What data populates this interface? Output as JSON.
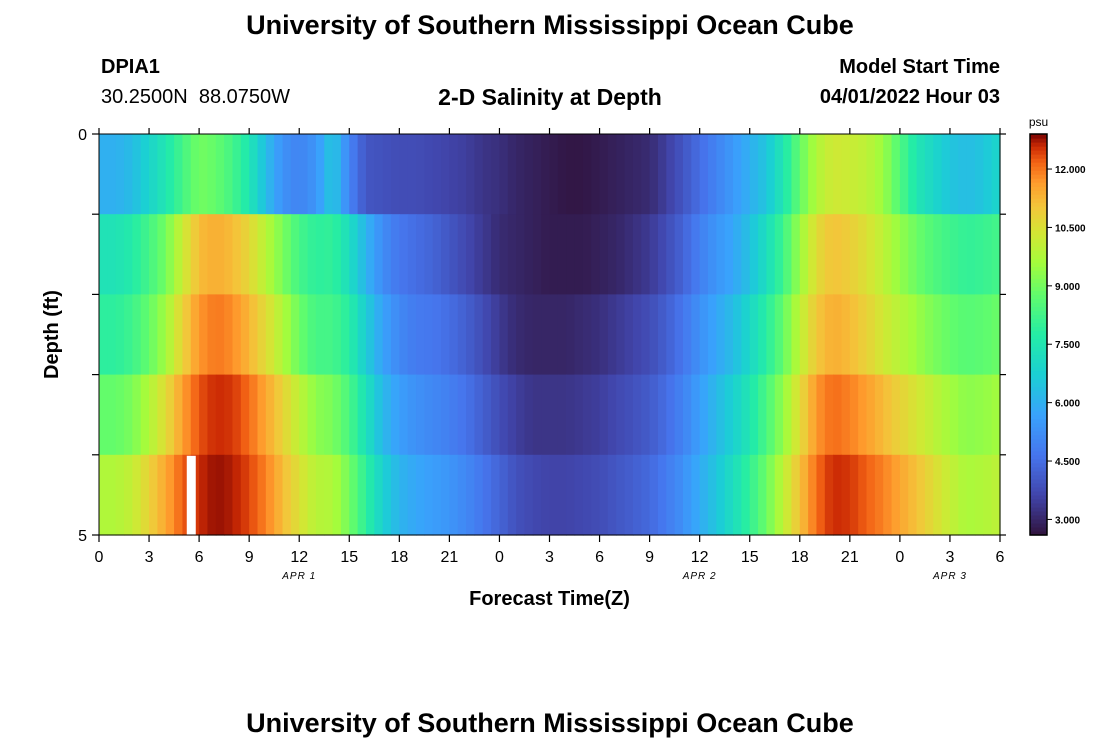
{
  "header": {
    "title_top": "University of Southern Mississippi Ocean Cube",
    "station_id": "DPIA1",
    "station_coords": "30.2500N  88.0750W",
    "subtitle": "2-D Salinity at Depth",
    "model_start_label": "Model Start Time",
    "model_start_value": "04/01/2022 Hour 03",
    "title_bottom": "University of Southern Mississippi Ocean Cube"
  },
  "chart_data": {
    "type": "heatmap",
    "title": "2-D Salinity at Depth",
    "xlabel": "Forecast Time(Z)",
    "ylabel": "Depth (ft)",
    "x_tick_labels": [
      "0",
      "3",
      "6",
      "9",
      "12",
      "15",
      "18",
      "21",
      "0",
      "3",
      "6",
      "9",
      "12",
      "15",
      "18",
      "21",
      "0",
      "3",
      "6"
    ],
    "x_range_hours": [
      0,
      54
    ],
    "date_labels": [
      {
        "text": "APR 1",
        "hour": 12
      },
      {
        "text": "APR 2",
        "hour": 36
      },
      {
        "text": "APR 3",
        "hour": 51
      }
    ],
    "y_tick_labels": [
      "0",
      "5"
    ],
    "y_range": [
      0,
      5
    ],
    "colorbar": {
      "unit": "psu",
      "min": 2.6,
      "max": 12.9,
      "tick_values": [
        3.0,
        4.5,
        6.0,
        7.5,
        9.0,
        10.5,
        12.0
      ],
      "tick_labels": [
        "3.000",
        "4.500",
        "6.000",
        "7.500",
        "9.000",
        "10.500",
        "12.000"
      ]
    },
    "depth_layers": 5,
    "time_nodes_hours": [
      0,
      1,
      2,
      3,
      4,
      5,
      6,
      7,
      8,
      9,
      10,
      11,
      12,
      13,
      14,
      15,
      16,
      17,
      18,
      19,
      20,
      21,
      22,
      23,
      24,
      25,
      26,
      27,
      28,
      29,
      30,
      31,
      32,
      33,
      34,
      35,
      36,
      37,
      38,
      39,
      40,
      41,
      42,
      43,
      44,
      45,
      46,
      47,
      48,
      49,
      50,
      51,
      52,
      53,
      54
    ],
    "values_by_layer": [
      [
        6.0,
        6.0,
        6.3,
        6.9,
        7.5,
        8.3,
        9.0,
        8.8,
        8.3,
        7.5,
        6.3,
        5.3,
        5.0,
        5.4,
        6.6,
        5.0,
        4.0,
        3.9,
        3.8,
        3.8,
        3.7,
        3.6,
        3.5,
        3.3,
        3.2,
        3.0,
        2.9,
        2.8,
        2.7,
        2.7,
        2.8,
        2.9,
        3.0,
        3.1,
        3.5,
        4.0,
        4.5,
        5.0,
        5.5,
        6.0,
        6.5,
        7.5,
        8.8,
        9.8,
        10.3,
        10.2,
        10.0,
        9.5,
        8.5,
        7.5,
        7.0,
        6.5,
        6.3,
        6.5,
        7.0
      ],
      [
        7.4,
        7.4,
        7.7,
        8.3,
        9.0,
        10.2,
        11.2,
        11.4,
        11.2,
        10.7,
        9.9,
        9.1,
        8.3,
        7.9,
        8.0,
        7.2,
        6.1,
        5.2,
        4.7,
        4.5,
        4.3,
        4.0,
        3.7,
        3.4,
        3.1,
        3.0,
        2.9,
        2.8,
        2.8,
        2.8,
        2.9,
        3.0,
        3.2,
        3.4,
        3.8,
        4.3,
        4.9,
        5.4,
        5.8,
        6.4,
        7.2,
        8.2,
        9.5,
        10.6,
        11.1,
        10.9,
        10.5,
        10.0,
        9.4,
        8.9,
        8.5,
        8.2,
        8.0,
        8.1,
        8.3
      ],
      [
        7.9,
        7.9,
        8.2,
        8.8,
        9.6,
        10.8,
        11.7,
        12.0,
        11.8,
        11.3,
        10.6,
        9.8,
        8.9,
        8.3,
        8.3,
        7.8,
        6.7,
        5.7,
        5.1,
        4.8,
        4.7,
        4.5,
        4.2,
        3.8,
        3.4,
        3.1,
        3.0,
        3.0,
        3.0,
        3.1,
        3.2,
        3.4,
        3.6,
        3.8,
        4.2,
        4.7,
        5.3,
        5.8,
        6.3,
        7.0,
        7.8,
        8.8,
        10.0,
        11.0,
        11.4,
        11.2,
        10.8,
        10.3,
        9.9,
        9.5,
        9.1,
        8.8,
        8.6,
        8.7,
        8.9
      ],
      [
        8.8,
        8.8,
        9.1,
        9.8,
        10.6,
        11.6,
        12.3,
        12.6,
        12.5,
        12.1,
        11.5,
        10.8,
        10.0,
        9.3,
        9.1,
        8.4,
        7.3,
        6.2,
        5.6,
        5.3,
        5.1,
        4.9,
        4.6,
        4.2,
        3.8,
        3.5,
        3.3,
        3.3,
        3.3,
        3.4,
        3.5,
        3.7,
        3.9,
        4.1,
        4.5,
        5.0,
        5.6,
        6.2,
        6.8,
        7.5,
        8.4,
        9.4,
        10.6,
        11.7,
        12.1,
        11.9,
        11.6,
        11.2,
        10.8,
        10.4,
        10.0,
        9.6,
        9.3,
        9.4,
        9.6
      ],
      [
        9.8,
        9.8,
        10.1,
        10.8,
        11.5,
        12.2,
        12.6,
        12.8,
        12.7,
        12.4,
        11.9,
        11.2,
        10.5,
        9.9,
        9.8,
        9.0,
        7.9,
        6.8,
        6.1,
        5.8,
        5.6,
        5.4,
        5.1,
        4.7,
        4.3,
        3.9,
        3.7,
        3.6,
        3.6,
        3.7,
        3.8,
        4.0,
        4.2,
        4.4,
        4.8,
        5.3,
        5.9,
        6.5,
        7.2,
        8.0,
        8.9,
        10.0,
        11.1,
        12.1,
        12.6,
        12.5,
        12.2,
        11.9,
        11.5,
        11.1,
        10.6,
        10.1,
        9.7,
        9.8,
        10.0
      ]
    ],
    "missing_marker": {
      "hour": 5.5,
      "depth_layer": 5
    }
  }
}
